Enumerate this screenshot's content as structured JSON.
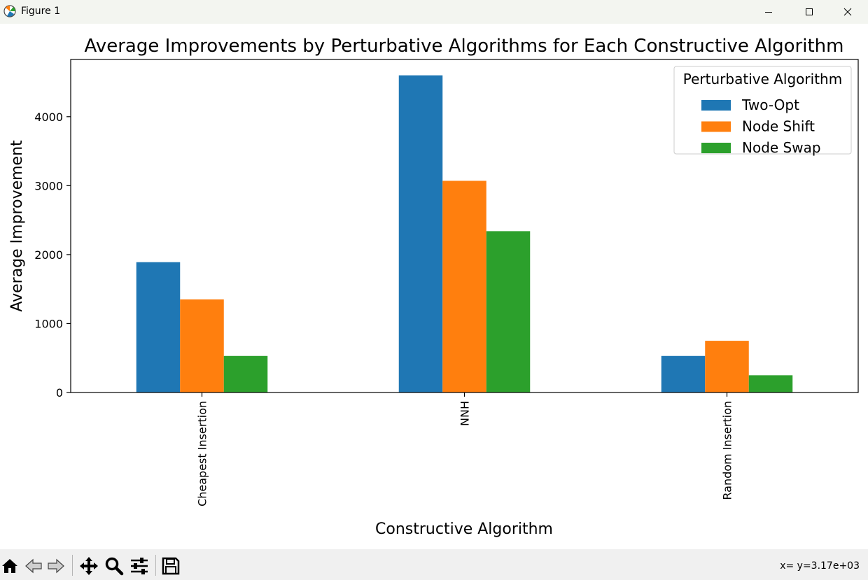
{
  "window": {
    "title": "Figure 1",
    "controls": [
      "minimize",
      "maximize",
      "close"
    ]
  },
  "toolbar": {
    "buttons": [
      "home-icon",
      "back-icon",
      "forward-icon",
      "pan-icon",
      "zoom-icon",
      "configure-subplots-icon",
      "save-icon"
    ],
    "coordinates": "x= y=3.17e+03"
  },
  "chart_data": {
    "type": "bar",
    "title": "Average Improvements by Perturbative Algorithms for Each Constructive Algorithm",
    "xlabel": "Constructive Algorithm",
    "ylabel": "Average Improvement",
    "categories": [
      "Cheapest Insertion",
      "NNH",
      "Random Insertion"
    ],
    "series": [
      {
        "name": "Two-Opt",
        "color": "#1f77b4",
        "values": [
          1890,
          4600,
          530
        ]
      },
      {
        "name": "Node Shift",
        "color": "#ff7f0e",
        "values": [
          1350,
          3070,
          750
        ]
      },
      {
        "name": "Node Swap",
        "color": "#2ca02c",
        "values": [
          530,
          2340,
          250
        ]
      }
    ],
    "ylim": [
      0,
      4830
    ],
    "yticks": [
      0,
      1000,
      2000,
      3000,
      4000
    ],
    "ytick_labels": [
      "0",
      "1000",
      "2000",
      "3000",
      "4000"
    ],
    "legend": {
      "title": "Perturbative Algorithm",
      "position": "top-right"
    },
    "grid": false
  }
}
